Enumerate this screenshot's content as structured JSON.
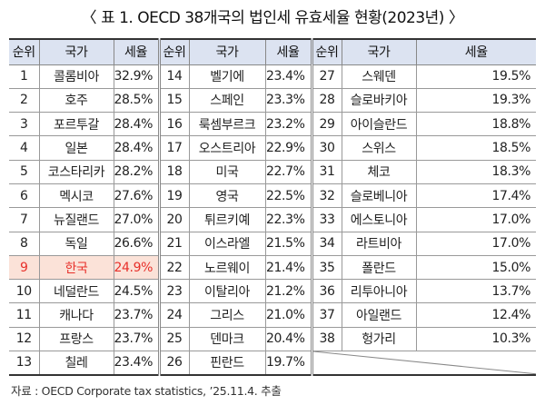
{
  "title": "〈 표 1. OECD 38개국의 법인세 유효세율 현황(2023년) 〉",
  "table": {
    "headers": {
      "rank": "순위",
      "country": "국가",
      "rate": "세율"
    },
    "highlight_color": "#e8302a",
    "highlight_bg": "#fbe2d8",
    "header_bg": "#dce3f1",
    "rows": [
      [
        {
          "rank": "1",
          "country": "콜롬비아",
          "rate": "32.9%"
        },
        {
          "rank": "14",
          "country": "벨기에",
          "rate": "23.4%"
        },
        {
          "rank": "27",
          "country": "스웨덴",
          "rate": "19.5%"
        }
      ],
      [
        {
          "rank": "2",
          "country": "호주",
          "rate": "28.5%"
        },
        {
          "rank": "15",
          "country": "스페인",
          "rate": "23.3%"
        },
        {
          "rank": "28",
          "country": "슬로바키아",
          "rate": "19.3%"
        }
      ],
      [
        {
          "rank": "3",
          "country": "포르투갈",
          "rate": "28.4%"
        },
        {
          "rank": "16",
          "country": "룩셈부르크",
          "rate": "23.2%"
        },
        {
          "rank": "29",
          "country": "아이슬란드",
          "rate": "18.8%"
        }
      ],
      [
        {
          "rank": "4",
          "country": "일본",
          "rate": "28.4%"
        },
        {
          "rank": "17",
          "country": "오스트리아",
          "rate": "22.9%"
        },
        {
          "rank": "30",
          "country": "스위스",
          "rate": "18.5%"
        }
      ],
      [
        {
          "rank": "5",
          "country": "코스타리카",
          "rate": "28.2%"
        },
        {
          "rank": "18",
          "country": "미국",
          "rate": "22.7%"
        },
        {
          "rank": "31",
          "country": "체코",
          "rate": "18.3%"
        }
      ],
      [
        {
          "rank": "6",
          "country": "멕시코",
          "rate": "27.6%"
        },
        {
          "rank": "19",
          "country": "영국",
          "rate": "22.5%"
        },
        {
          "rank": "32",
          "country": "슬로베니아",
          "rate": "17.4%"
        }
      ],
      [
        {
          "rank": "7",
          "country": "뉴질랜드",
          "rate": "27.0%"
        },
        {
          "rank": "20",
          "country": "튀르키예",
          "rate": "22.3%"
        },
        {
          "rank": "33",
          "country": "에스토니아",
          "rate": "17.0%"
        }
      ],
      [
        {
          "rank": "8",
          "country": "독일",
          "rate": "26.6%"
        },
        {
          "rank": "21",
          "country": "이스라엘",
          "rate": "21.5%"
        },
        {
          "rank": "34",
          "country": "라트비아",
          "rate": "17.0%"
        }
      ],
      [
        {
          "rank": "9",
          "country": "한국",
          "rate": "24.9%"
        },
        {
          "rank": "22",
          "country": "노르웨이",
          "rate": "21.4%"
        },
        {
          "rank": "35",
          "country": "폴란드",
          "rate": "15.0%"
        }
      ],
      [
        {
          "rank": "10",
          "country": "네덜란드",
          "rate": "24.5%"
        },
        {
          "rank": "23",
          "country": "이탈리아",
          "rate": "21.2%"
        },
        {
          "rank": "36",
          "country": "리투아니아",
          "rate": "13.7%"
        }
      ],
      [
        {
          "rank": "11",
          "country": "캐나다",
          "rate": "23.7%"
        },
        {
          "rank": "24",
          "country": "그리스",
          "rate": "21.0%"
        },
        {
          "rank": "37",
          "country": "아일랜드",
          "rate": "12.4%"
        }
      ],
      [
        {
          "rank": "12",
          "country": "프랑스",
          "rate": "23.7%"
        },
        {
          "rank": "25",
          "country": "덴마크",
          "rate": "20.4%"
        },
        {
          "rank": "38",
          "country": "헝가리",
          "rate": "10.3%"
        }
      ],
      [
        {
          "rank": "13",
          "country": "칠레",
          "rate": "23.4%"
        },
        {
          "rank": "26",
          "country": "핀란드",
          "rate": "19.7%"
        }
      ]
    ]
  },
  "source": "자료 : OECD Corporate tax statistics, ’25.11.4. 추출"
}
